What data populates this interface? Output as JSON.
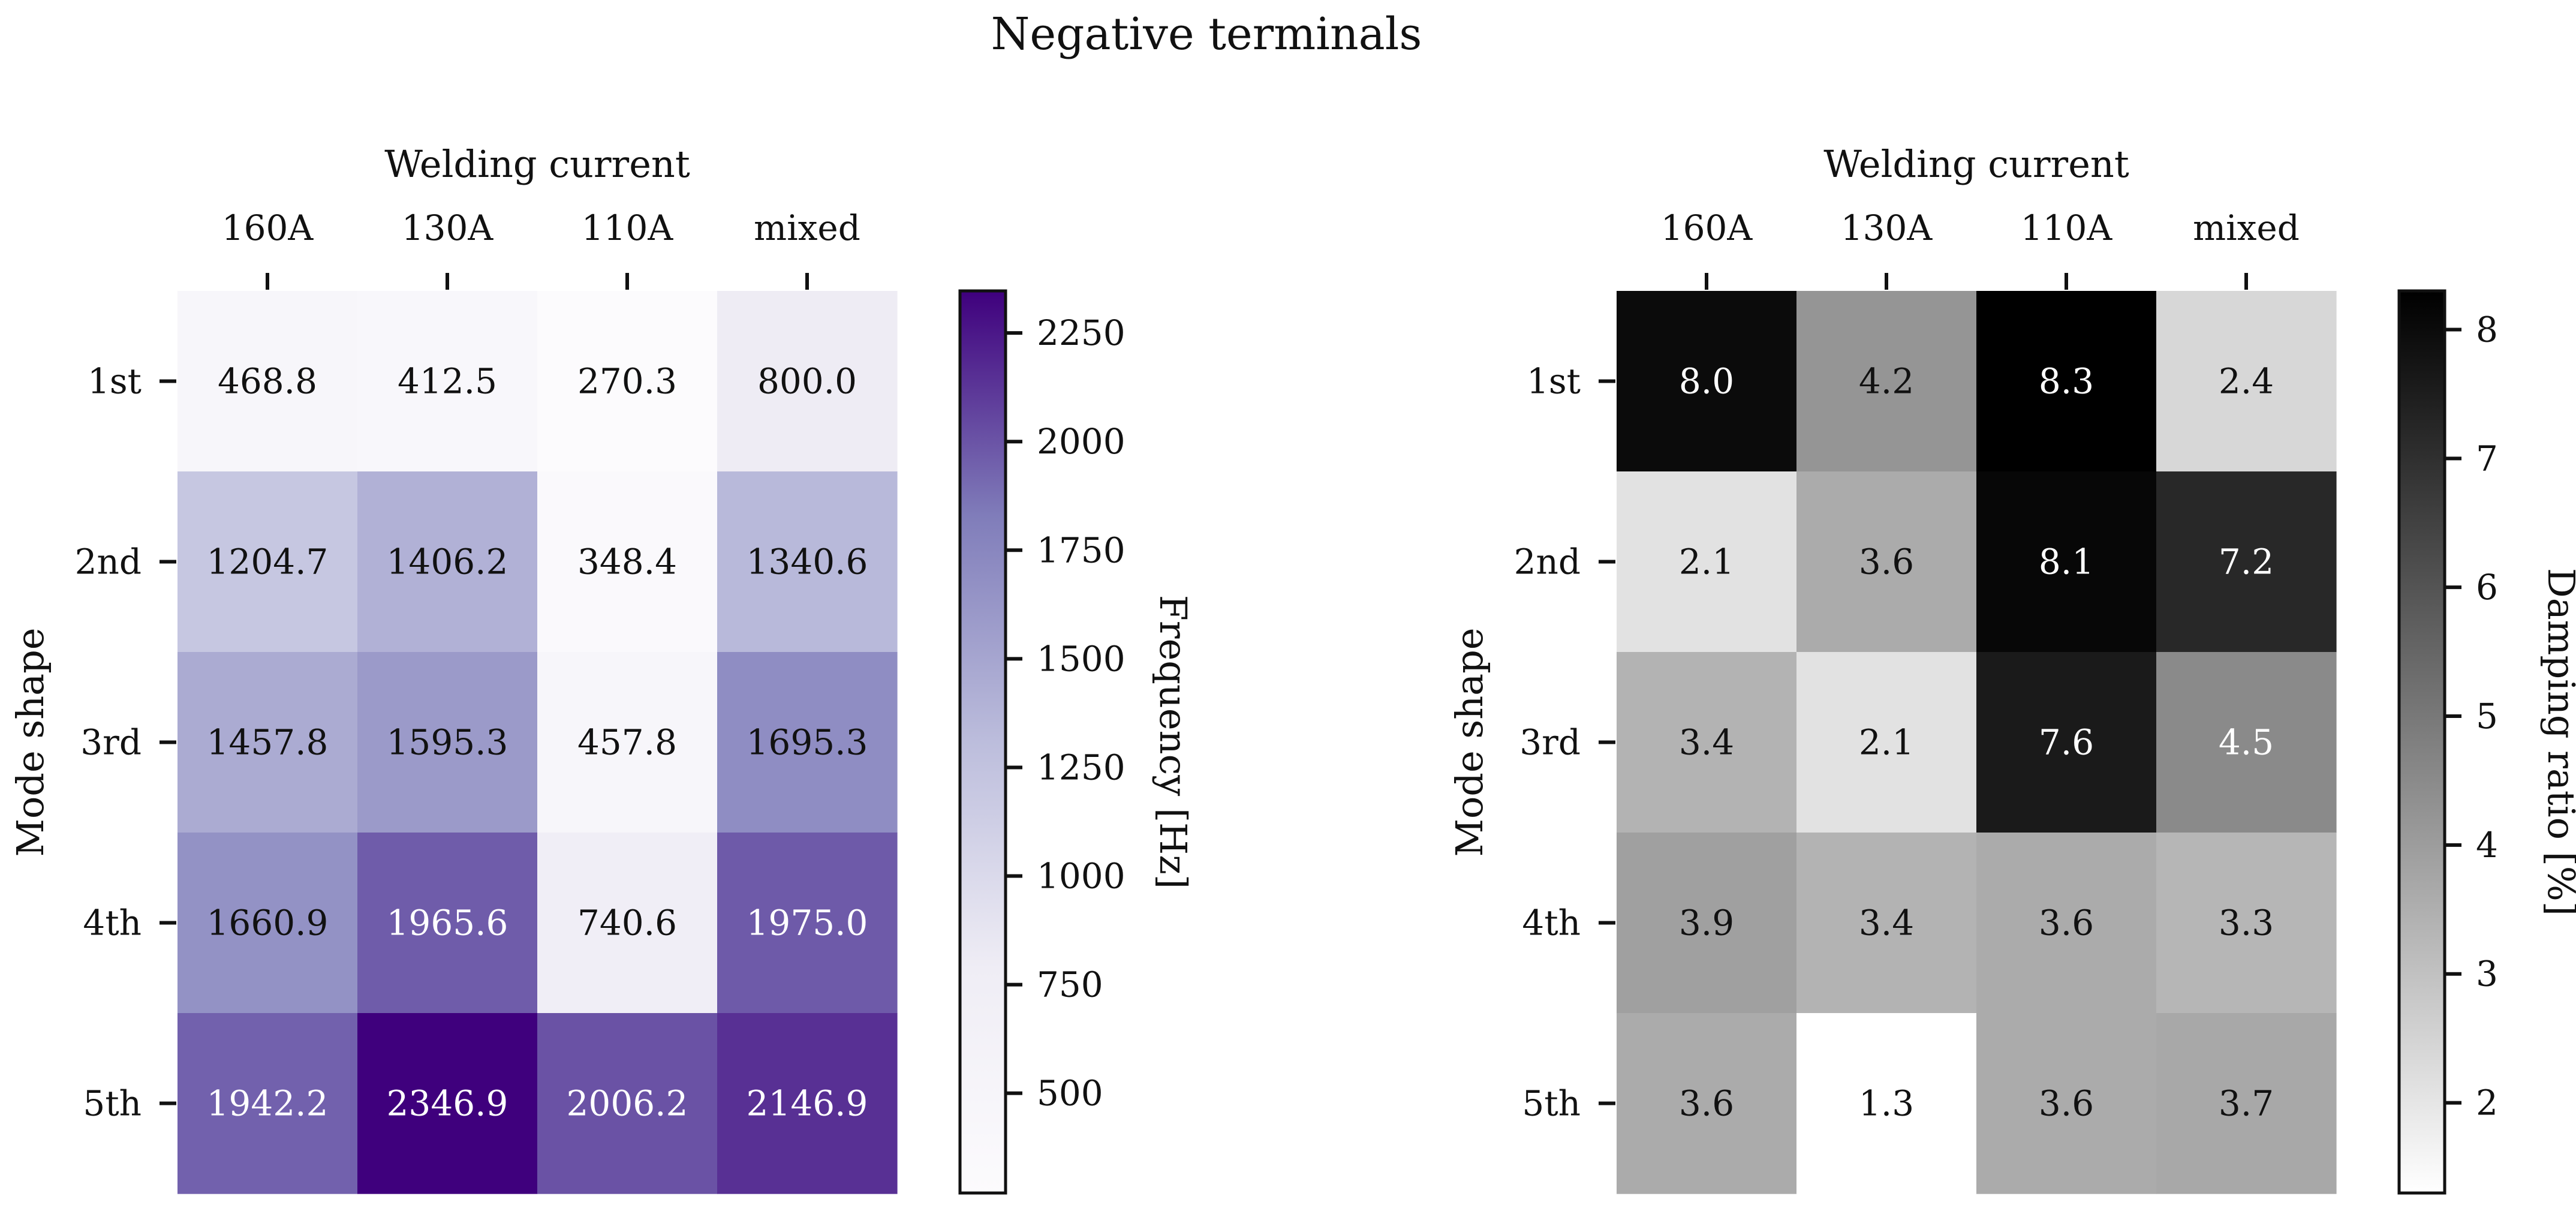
{
  "figure": {
    "title": "Negative terminals"
  },
  "chart_data": [
    {
      "type": "heatmap",
      "xlabel": "Welding current",
      "ylabel": "Mode shape",
      "columns": [
        "160A",
        "130A",
        "110A",
        "mixed"
      ],
      "rows": [
        "1st",
        "2nd",
        "3rd",
        "4th",
        "5th"
      ],
      "values": [
        [
          468.8,
          412.5,
          270.3,
          800.0
        ],
        [
          1204.7,
          1406.2,
          348.4,
          1340.6
        ],
        [
          1457.8,
          1595.3,
          457.8,
          1695.3
        ],
        [
          1660.9,
          1965.6,
          740.6,
          1975.0
        ],
        [
          1942.2,
          2346.9,
          2006.2,
          2146.9
        ]
      ],
      "value_labels": [
        [
          "468.8",
          "412.5",
          "270.3",
          "800.0"
        ],
        [
          "1204.7",
          "1406.2",
          "348.4",
          "1340.6"
        ],
        [
          "1457.8",
          "1595.3",
          "457.8",
          "1695.3"
        ],
        [
          "1660.9",
          "1965.6",
          "740.6",
          "1975.0"
        ],
        [
          "1942.2",
          "2346.9",
          "2006.2",
          "2146.9"
        ]
      ],
      "colormap": "purples",
      "color_low": "#fcfbfd",
      "color_mid": "#9e9ac8",
      "color_high": "#3f007d",
      "colorbar": {
        "label": "Frequency [Hz]",
        "range": [
          270.3,
          2346.9
        ],
        "ticks": [
          500,
          750,
          1000,
          1250,
          1500,
          1750,
          2000,
          2250
        ],
        "tick_labels": [
          "500",
          "750",
          "1000",
          "1250",
          "1500",
          "1750",
          "2000",
          "2250"
        ]
      }
    },
    {
      "type": "heatmap",
      "xlabel": "Welding current",
      "ylabel": "Mode shape",
      "columns": [
        "160A",
        "130A",
        "110A",
        "mixed"
      ],
      "rows": [
        "1st",
        "2nd",
        "3rd",
        "4th",
        "5th"
      ],
      "values": [
        [
          8.0,
          4.2,
          8.3,
          2.4
        ],
        [
          2.1,
          3.6,
          8.1,
          7.2
        ],
        [
          3.4,
          2.1,
          7.6,
          4.5
        ],
        [
          3.9,
          3.4,
          3.6,
          3.3
        ],
        [
          3.6,
          1.3,
          3.6,
          3.7
        ]
      ],
      "value_labels": [
        [
          "8.0",
          "4.2",
          "8.3",
          "2.4"
        ],
        [
          "2.1",
          "3.6",
          "8.1",
          "7.2"
        ],
        [
          "3.4",
          "2.1",
          "7.6",
          "4.5"
        ],
        [
          "3.9",
          "3.4",
          "3.6",
          "3.3"
        ],
        [
          "3.6",
          "1.3",
          "3.6",
          "3.7"
        ]
      ],
      "colormap": "greys",
      "color_low": "#ffffff",
      "color_high": "#000000",
      "colorbar": {
        "label": "Damping ratio [%]",
        "range": [
          1.3,
          8.3
        ],
        "ticks": [
          2,
          3,
          4,
          5,
          6,
          7,
          8
        ],
        "tick_labels": [
          "2",
          "3",
          "4",
          "5",
          "6",
          "7",
          "8"
        ]
      }
    }
  ]
}
